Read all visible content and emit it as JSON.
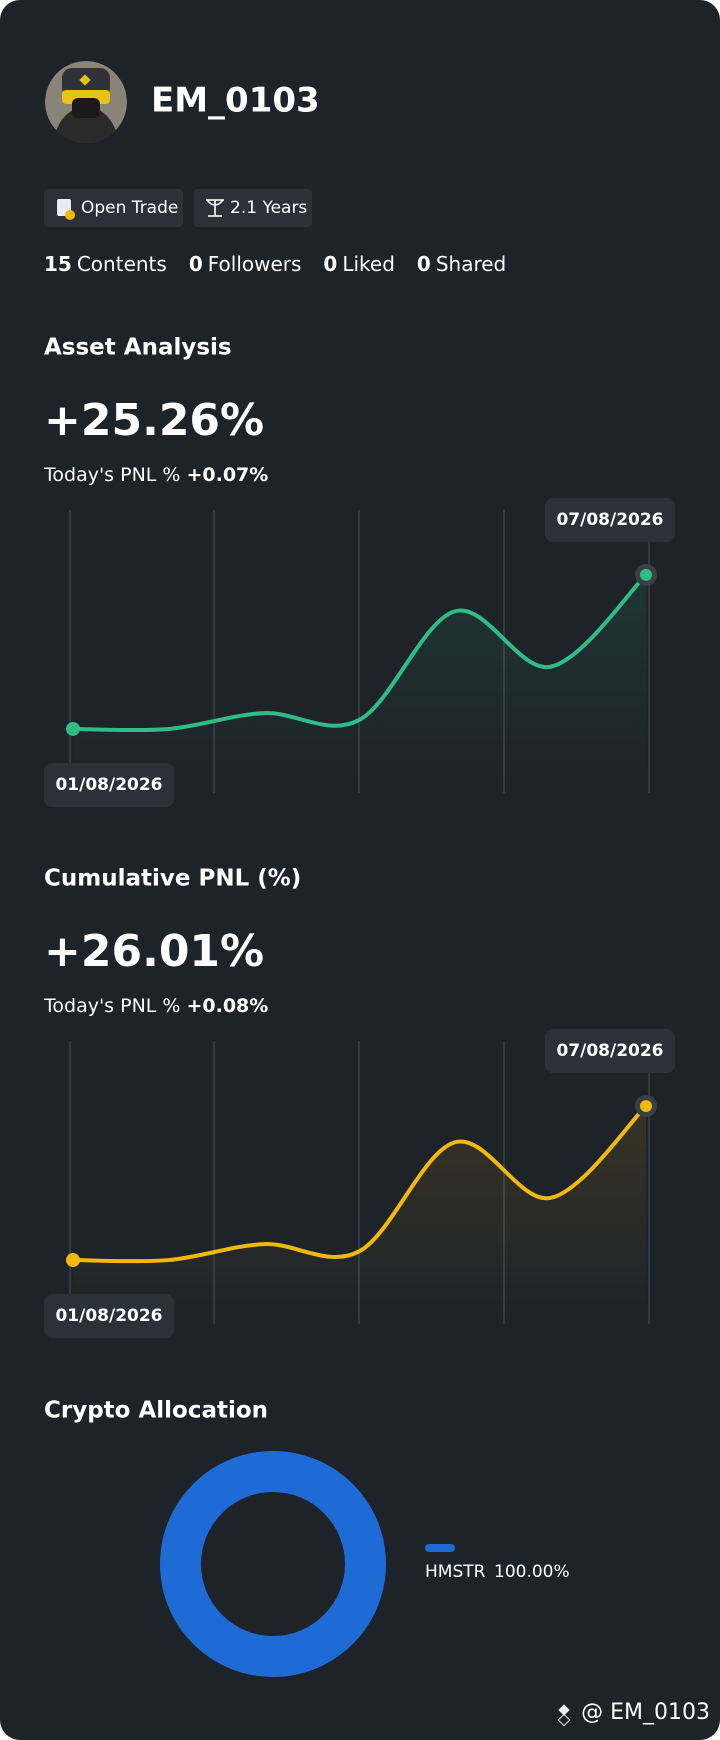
{
  "profile": {
    "name": "EM_0103",
    "tags": [
      "Open Trade",
      "2.1 Years"
    ],
    "stats": [
      {
        "count": 15,
        "label": "Contents"
      },
      {
        "count": 0,
        "label": "Followers"
      },
      {
        "count": 0,
        "label": "Liked"
      },
      {
        "count": 0,
        "label": "Shared"
      }
    ]
  },
  "chart_data": [
    {
      "type": "line",
      "title": "Asset Analysis",
      "headline": "+25.26%",
      "today_label": "Today's PNL %",
      "today_value": "+0.07%",
      "categories": [
        "01/08/2026",
        null,
        null,
        null,
        null,
        null,
        "07/08/2026"
      ],
      "series": [
        {
          "color": "#2ebd85",
          "values": [
            0,
            0,
            2.6,
            1.5,
            19.3,
            10.2,
            25.26
          ]
        }
      ],
      "ylim": [
        -10.5,
        35.9
      ]
    },
    {
      "type": "line",
      "title": "Cumulative PNL (%)",
      "headline": "+26.01%",
      "today_label": "Today's PNL %",
      "today_value": "+0.08%",
      "categories": [
        "01/08/2026",
        null,
        null,
        null,
        null,
        null,
        "07/08/2026"
      ],
      "series": [
        {
          "color": "#f0b90b",
          "values": [
            0,
            0,
            2.7,
            1.5,
            19.9,
            10.5,
            26.01
          ]
        }
      ],
      "ylim": [
        -10.8,
        37.0
      ]
    },
    {
      "type": "pie",
      "title": "Crypto Allocation",
      "categories": [
        "HMSTR"
      ],
      "values": [
        100
      ],
      "value_labels": [
        "100.00%"
      ],
      "colors": [
        "#1f6bd6"
      ]
    }
  ],
  "footer": "@ EM_0103"
}
